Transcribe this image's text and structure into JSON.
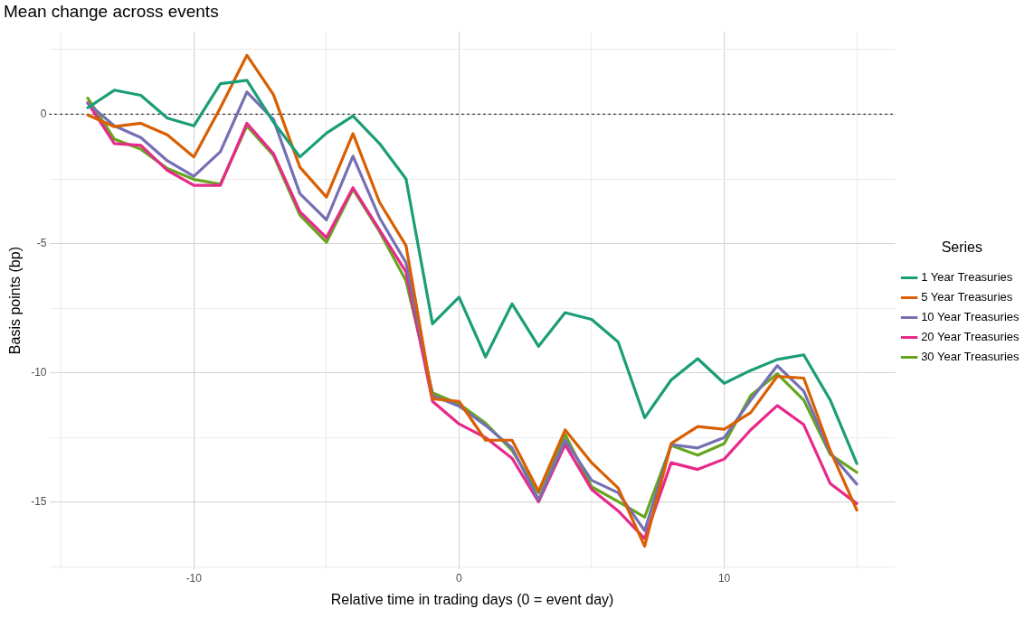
{
  "chart_data": {
    "type": "line",
    "title": "Mean change across events",
    "xlabel": "Relative time in trading days (0 = event day)",
    "ylabel": "Basis points (bp)",
    "legend_title": "Series",
    "legend": "right",
    "grid": true,
    "marker": "none",
    "line_style": "solid",
    "x": [
      -14,
      -13,
      -12,
      -11,
      -10,
      -9,
      -8,
      -7,
      -6,
      -5,
      -4,
      -3,
      -2,
      -1,
      0,
      1,
      2,
      3,
      4,
      5,
      6,
      7,
      8,
      9,
      10,
      11,
      12,
      13,
      14,
      15
    ],
    "xlim": [
      -15.45,
      16.45
    ],
    "xticks": [
      {
        "value": -15,
        "label": null
      },
      -10,
      {
        "value": -5,
        "label": null
      },
      0,
      {
        "value": 5,
        "label": null
      },
      10,
      {
        "value": 15,
        "label": null
      }
    ],
    "ylim": [
      -17.6,
      3.2
    ],
    "yticks": [
      {
        "value": -17.5,
        "label": null
      },
      -15,
      {
        "value": -12.5,
        "label": null
      },
      -10,
      {
        "value": -7.5,
        "label": null
      },
      -5,
      {
        "value": -2.5,
        "label": null
      },
      0,
      {
        "value": 2.5,
        "label": null
      }
    ],
    "ref_lines": [
      {
        "axis": "y",
        "value": 0,
        "color": "#000000",
        "line_style": "dotted"
      }
    ],
    "series": [
      {
        "name": "1 Year Treasuries",
        "color": "#1b9e77",
        "values": [
          0.25,
          0.93,
          0.73,
          -0.15,
          -0.45,
          1.18,
          1.31,
          -0.3,
          -1.65,
          -0.73,
          -0.07,
          -1.13,
          -2.5,
          -8.1,
          -7.07,
          -9.38,
          -7.33,
          -8.97,
          -7.67,
          -7.93,
          -8.8,
          -11.73,
          -10.27,
          -9.45,
          -10.4,
          -9.9,
          -9.48,
          -9.3,
          -11.05,
          -13.5
        ]
      },
      {
        "name": "5 Year Treasuries",
        "color": "#d95f02",
        "values": [
          -0.03,
          -0.48,
          -0.35,
          -0.8,
          -1.65,
          0.25,
          2.28,
          0.76,
          -2.05,
          -3.2,
          -0.75,
          -3.4,
          -5.08,
          -11.0,
          -11.1,
          -12.6,
          -12.6,
          -14.57,
          -12.2,
          -13.47,
          -14.45,
          -16.7,
          -12.73,
          -12.07,
          -12.18,
          -11.53,
          -10.13,
          -10.2,
          -13.0,
          -15.3
        ]
      },
      {
        "name": "10 Year Treasuries",
        "color": "#7570b3",
        "values": [
          0.42,
          -0.45,
          -0.9,
          -1.8,
          -2.4,
          -1.45,
          0.86,
          -0.2,
          -3.07,
          -4.08,
          -1.62,
          -4.0,
          -5.74,
          -10.87,
          -11.28,
          -12.03,
          -12.9,
          -14.9,
          -12.6,
          -14.15,
          -14.63,
          -16.1,
          -12.77,
          -12.9,
          -12.5,
          -11.05,
          -9.72,
          -10.7,
          -13.1,
          -14.3
        ]
      },
      {
        "name": "20 Year Treasuries",
        "color": "#e7298a",
        "values": [
          0.45,
          -1.13,
          -1.2,
          -2.17,
          -2.75,
          -2.75,
          -0.35,
          -1.52,
          -3.77,
          -4.77,
          -2.84,
          -4.47,
          -6.09,
          -11.1,
          -11.97,
          -12.5,
          -13.3,
          -14.98,
          -12.77,
          -14.5,
          -15.33,
          -16.4,
          -13.47,
          -13.73,
          -13.33,
          -12.2,
          -11.26,
          -12.0,
          -14.28,
          -15.05
        ]
      },
      {
        "name": "30 Year Treasuries",
        "color": "#66a61e",
        "values": [
          0.62,
          -0.96,
          -1.35,
          -2.1,
          -2.52,
          -2.7,
          -0.45,
          -1.59,
          -3.9,
          -4.95,
          -2.9,
          -4.53,
          -6.44,
          -10.77,
          -11.2,
          -11.94,
          -13.0,
          -14.63,
          -12.38,
          -14.4,
          -14.97,
          -15.57,
          -12.8,
          -13.18,
          -12.73,
          -10.87,
          -10.03,
          -11.05,
          -13.15,
          -13.84
        ]
      }
    ]
  }
}
